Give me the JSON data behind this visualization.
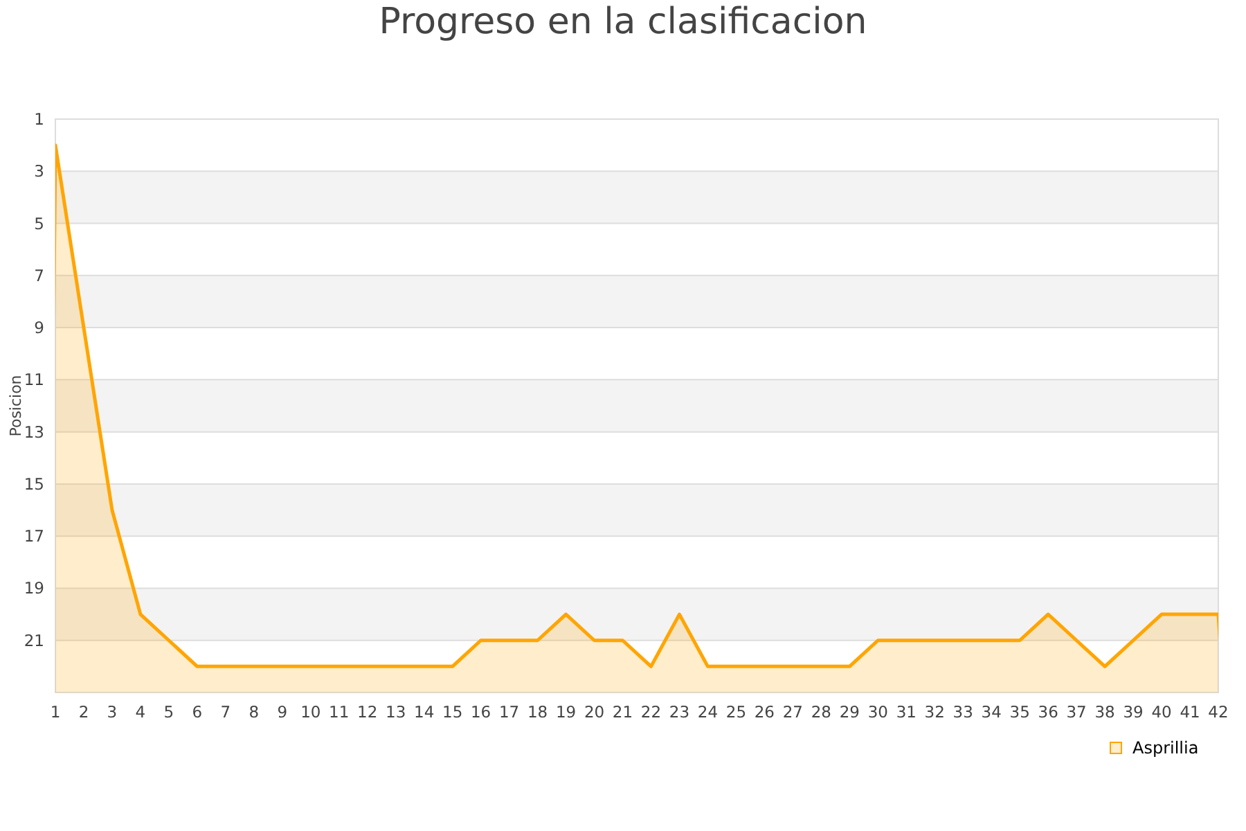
{
  "chart_data": {
    "type": "area",
    "title": "Progreso en la clasificacion",
    "ylabel": "Posicion",
    "x": [
      1,
      2,
      3,
      4,
      5,
      6,
      7,
      8,
      9,
      10,
      11,
      12,
      13,
      14,
      15,
      16,
      17,
      18,
      19,
      20,
      21,
      22,
      23,
      24,
      25,
      26,
      27,
      28,
      29,
      30,
      31,
      32,
      33,
      34,
      35,
      36,
      37,
      38,
      39,
      40,
      41,
      42
    ],
    "series": [
      {
        "name": "Asprillia",
        "color": "#ffa500",
        "values": [
          2,
          9,
          16,
          20,
          21,
          22,
          22,
          22,
          22,
          22,
          22,
          22,
          22,
          22,
          22,
          21,
          21,
          21,
          20,
          21,
          21,
          22,
          20,
          22,
          22,
          22,
          22,
          22,
          22,
          21,
          21,
          21,
          21,
          21,
          21,
          20,
          21,
          22,
          21,
          20,
          20,
          20
        ]
      }
    ],
    "xlim": [
      1,
      42
    ],
    "xticks": [
      1,
      2,
      3,
      4,
      5,
      6,
      7,
      8,
      9,
      10,
      11,
      12,
      13,
      14,
      15,
      16,
      17,
      18,
      19,
      20,
      21,
      22,
      23,
      24,
      25,
      26,
      27,
      28,
      29,
      30,
      31,
      32,
      33,
      34,
      35,
      36,
      37,
      38,
      39,
      40,
      41,
      42
    ],
    "ylim": [
      23,
      1
    ],
    "yticks": [
      1,
      3,
      5,
      7,
      9,
      11,
      13,
      15,
      17,
      19,
      21
    ],
    "grid": "y",
    "legend": "bottom right"
  }
}
